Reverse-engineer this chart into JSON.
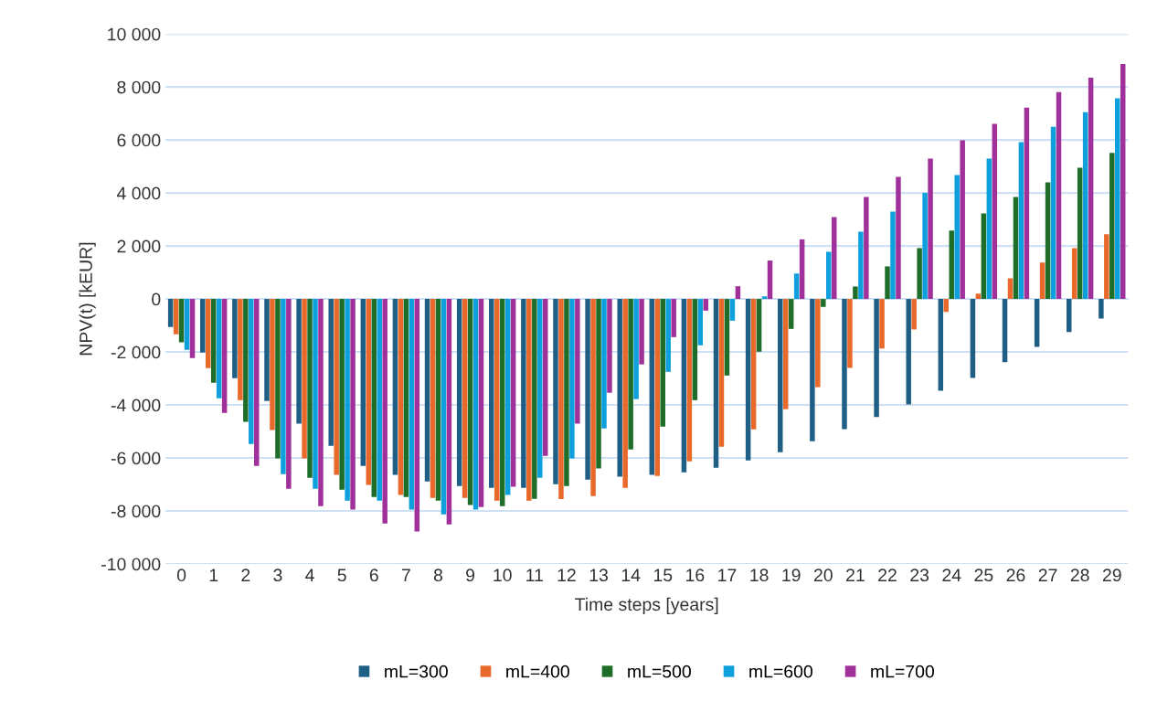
{
  "chart_data": {
    "type": "bar",
    "xlabel": "Time steps [years]",
    "ylabel": "NPV(t) [kEUR]",
    "categories": [
      "0",
      "1",
      "2",
      "3",
      "4",
      "5",
      "6",
      "7",
      "8",
      "9",
      "10",
      "11",
      "12",
      "13",
      "14",
      "15",
      "16",
      "17",
      "18",
      "19",
      "20",
      "21",
      "22",
      "23",
      "24",
      "25",
      "26",
      "27",
      "28",
      "29"
    ],
    "series": [
      {
        "name": "mL=300",
        "color": "#1f5f86",
        "values": [
          -1060,
          -2020,
          -2990,
          -3850,
          -4710,
          -5540,
          -6300,
          -6640,
          -6890,
          -7060,
          -7130,
          -7130,
          -6990,
          -6820,
          -6710,
          -6640,
          -6540,
          -6370,
          -6090,
          -5780,
          -5370,
          -4910,
          -4460,
          -3980,
          -3460,
          -2980,
          -2390,
          -1810,
          -1250,
          -740
        ]
      },
      {
        "name": "mL=400",
        "color": "#e8692a",
        "values": [
          -1330,
          -2610,
          -3820,
          -4950,
          -6020,
          -6640,
          -7020,
          -7400,
          -7510,
          -7510,
          -7610,
          -7610,
          -7550,
          -7440,
          -7130,
          -6680,
          -6130,
          -5580,
          -4920,
          -4160,
          -3330,
          -2600,
          -1870,
          -1150,
          -490,
          200,
          780,
          1370,
          1920,
          2440
        ]
      },
      {
        "name": "mL=500",
        "color": "#1e6e2a",
        "values": [
          -1640,
          -3160,
          -4640,
          -6020,
          -6750,
          -7200,
          -7470,
          -7470,
          -7610,
          -7780,
          -7820,
          -7540,
          -7060,
          -6400,
          -5680,
          -4820,
          -3820,
          -2890,
          -1990,
          -1130,
          -300,
          470,
          1230,
          1920,
          2580,
          3230,
          3850,
          4400,
          4950,
          5510
        ]
      },
      {
        "name": "mL=600",
        "color": "#0ea0dc",
        "values": [
          -1920,
          -3750,
          -5470,
          -6610,
          -7160,
          -7610,
          -7610,
          -7950,
          -8130,
          -7950,
          -7400,
          -6750,
          -6020,
          -4890,
          -3780,
          -2750,
          -1750,
          -820,
          100,
          960,
          1780,
          2540,
          3300,
          4000,
          4680,
          5300,
          5920,
          6500,
          7050,
          7570
        ]
      },
      {
        "name": "mL=700",
        "color": "#a0309a",
        "values": [
          -2230,
          -4300,
          -6300,
          -7160,
          -7820,
          -7950,
          -8470,
          -8780,
          -8510,
          -7850,
          -7090,
          -5920,
          -4710,
          -3540,
          -2470,
          -1440,
          -440,
          480,
          1450,
          2250,
          3090,
          3850,
          4610,
          5300,
          5990,
          6610,
          7220,
          7810,
          8350,
          8870
        ]
      }
    ],
    "ylim": [
      -10000,
      10000
    ],
    "yticks": [
      {
        "value": -10000,
        "label": "-10 000"
      },
      {
        "value": -8000,
        "label": "-8 000"
      },
      {
        "value": -6000,
        "label": "-6 000"
      },
      {
        "value": -4000,
        "label": "-4 000"
      },
      {
        "value": -2000,
        "label": "-2 000"
      },
      0,
      {
        "value": 2000,
        "label": "2 000"
      },
      {
        "value": 4000,
        "label": "4 000"
      },
      {
        "value": 6000,
        "label": "6 000"
      },
      {
        "value": 8000,
        "label": "8 000"
      },
      {
        "value": 10000,
        "label": "10 000"
      }
    ],
    "grid": "y",
    "legend": "bottom"
  }
}
